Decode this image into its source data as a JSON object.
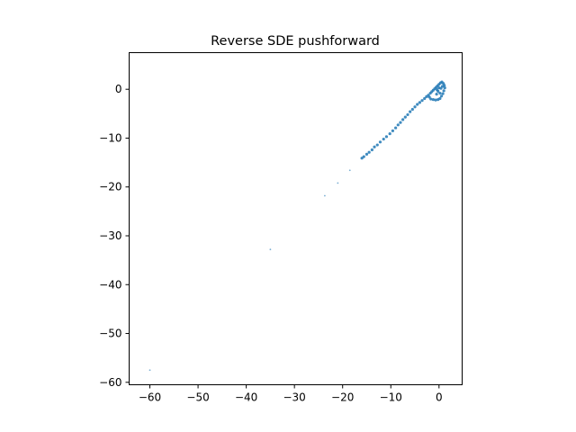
{
  "chart_data": {
    "type": "scatter",
    "title": "Reverse SDE pushforward",
    "xlabel": "",
    "ylabel": "",
    "xlim": [
      -64.3,
      4.8
    ],
    "ylim": [
      -60.5,
      7.5
    ],
    "xticks": [
      -60,
      -50,
      -40,
      -30,
      -20,
      -10,
      0
    ],
    "yticks": [
      0,
      -10,
      -20,
      -30,
      -40,
      -50,
      -60
    ],
    "xtick_labels": [
      "−60",
      "−50",
      "−40",
      "−30",
      "−20",
      "−10",
      "0"
    ],
    "ytick_labels": [
      "0",
      "−10",
      "−20",
      "−30",
      "−40",
      "−50",
      "−60"
    ],
    "grid": false,
    "color": "#1f77b4",
    "points": [
      {
        "x": -60.0,
        "y": -57.5
      },
      {
        "x": -35.0,
        "y": -32.8
      },
      {
        "x": -23.7,
        "y": -21.8
      },
      {
        "x": -21.0,
        "y": -19.2
      },
      {
        "x": -18.5,
        "y": -16.6
      },
      {
        "x": -16.0,
        "y": -14.1
      },
      {
        "x": -15.6,
        "y": -13.8
      },
      {
        "x": -15.0,
        "y": -13.3
      },
      {
        "x": -14.5,
        "y": -12.9
      },
      {
        "x": -13.9,
        "y": -12.4
      },
      {
        "x": -13.4,
        "y": -11.8
      },
      {
        "x": -12.8,
        "y": -11.4
      },
      {
        "x": -12.2,
        "y": -10.8
      },
      {
        "x": -11.5,
        "y": -10.2
      },
      {
        "x": -10.9,
        "y": -9.7
      },
      {
        "x": -10.2,
        "y": -9.1
      },
      {
        "x": -9.6,
        "y": -8.5
      },
      {
        "x": -9.0,
        "y": -7.9
      },
      {
        "x": -8.5,
        "y": -7.3
      },
      {
        "x": -8.0,
        "y": -6.8
      },
      {
        "x": -7.5,
        "y": -6.2
      },
      {
        "x": -7.0,
        "y": -5.7
      },
      {
        "x": -6.5,
        "y": -5.2
      },
      {
        "x": -6.0,
        "y": -4.6
      },
      {
        "x": -5.5,
        "y": -4.1
      },
      {
        "x": -5.0,
        "y": -3.6
      },
      {
        "x": -4.5,
        "y": -3.1
      },
      {
        "x": -4.0,
        "y": -2.7
      },
      {
        "x": -3.5,
        "y": -2.3
      },
      {
        "x": -3.0,
        "y": -1.9
      },
      {
        "x": -2.6,
        "y": -1.5
      },
      {
        "x": -2.2,
        "y": -1.2
      },
      {
        "x": -1.8,
        "y": -0.8
      },
      {
        "x": -1.5,
        "y": -0.5
      },
      {
        "x": -1.2,
        "y": -0.2
      },
      {
        "x": -0.9,
        "y": 0.1
      },
      {
        "x": -0.6,
        "y": 0.4
      },
      {
        "x": -0.3,
        "y": 0.7
      },
      {
        "x": 0.0,
        "y": 1.0
      },
      {
        "x": 0.3,
        "y": 1.3
      },
      {
        "x": 0.6,
        "y": 1.5
      },
      {
        "x": 0.9,
        "y": 1.2
      },
      {
        "x": 1.1,
        "y": 0.8
      },
      {
        "x": 1.2,
        "y": 0.3
      },
      {
        "x": 1.0,
        "y": -0.3
      },
      {
        "x": 0.8,
        "y": -0.9
      },
      {
        "x": 0.5,
        "y": -1.4
      },
      {
        "x": 0.2,
        "y": -1.9
      },
      {
        "x": -0.2,
        "y": -2.1
      },
      {
        "x": -0.7,
        "y": -2.2
      },
      {
        "x": -1.2,
        "y": -2.1
      },
      {
        "x": -1.7,
        "y": -2.0
      },
      {
        "x": -2.0,
        "y": -1.6
      },
      {
        "x": -0.5,
        "y": -1.0
      },
      {
        "x": -0.2,
        "y": -0.4
      },
      {
        "x": 0.4,
        "y": 0.2
      },
      {
        "x": 0.7,
        "y": 0.6
      },
      {
        "x": 0.0,
        "y": 0.3
      },
      {
        "x": -0.4,
        "y": -0.1
      },
      {
        "x": 0.2,
        "y": -0.8
      }
    ]
  }
}
